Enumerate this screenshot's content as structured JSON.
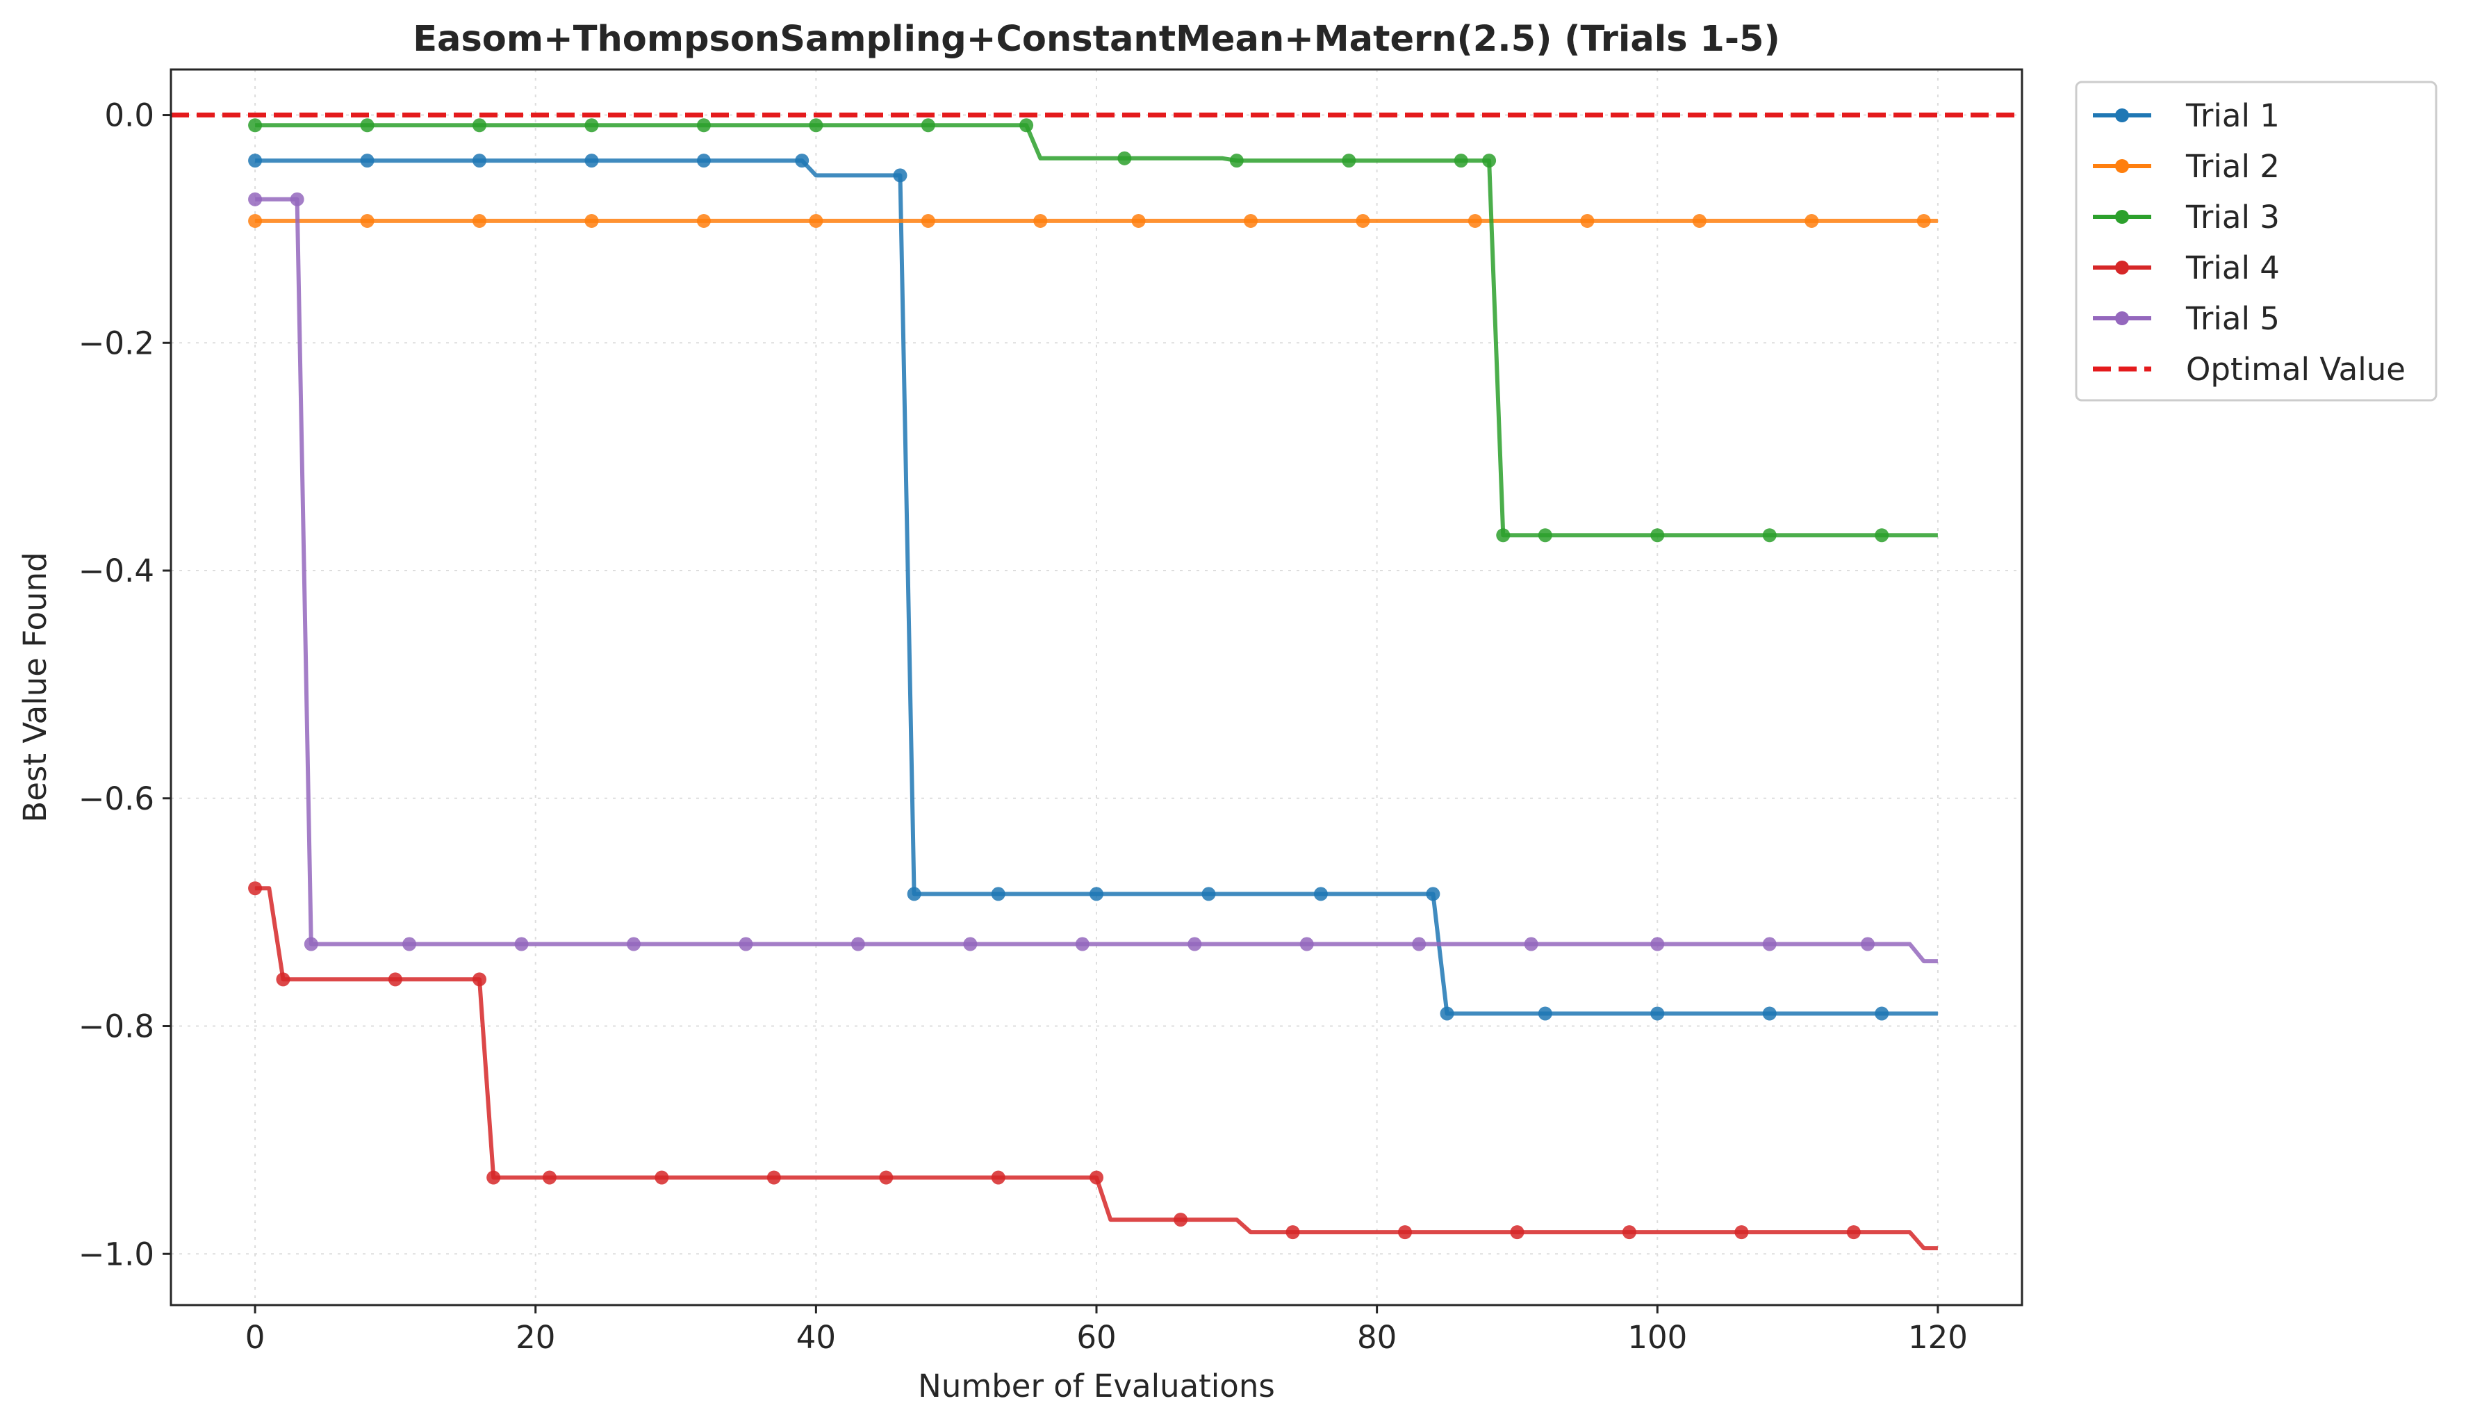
{
  "chart_data": {
    "type": "line",
    "title": "Easom+ThompsonSampling+ConstantMean+Matern(2.5) (Trials 1-5)",
    "xlabel": "Number of Evaluations",
    "ylabel": "Best Value Found",
    "xlim": [
      -6,
      126
    ],
    "ylim": [
      -1.045,
      0.04
    ],
    "xticks": [
      0,
      20,
      40,
      60,
      80,
      100,
      120
    ],
    "xtick_labels": [
      "0",
      "20",
      "40",
      "60",
      "80",
      "100",
      "120"
    ],
    "yticks": [
      0.0,
      -0.2,
      -0.4,
      -0.6,
      -0.8,
      -1.0
    ],
    "ytick_labels": [
      "0.0",
      "−0.2",
      "−0.4",
      "−0.6",
      "−0.8",
      "−1.0"
    ],
    "grid": true,
    "legend_position": "outside-top-right",
    "optimal_value": {
      "name": "Optimal Value",
      "y": 0.0,
      "color": "#e41a1c",
      "style": "dashed"
    },
    "series": [
      {
        "name": "Trial 1",
        "color": "#1f77b4",
        "steps": [
          [
            0,
            -0.04
          ],
          [
            39,
            -0.04
          ],
          [
            40,
            -0.053
          ],
          [
            46,
            -0.053
          ],
          [
            47,
            -0.684
          ],
          [
            84,
            -0.684
          ],
          [
            85,
            -0.789
          ],
          [
            120,
            -0.789
          ]
        ],
        "markers": [
          0,
          8,
          16,
          24,
          32,
          39,
          46,
          47,
          53,
          60,
          68,
          76,
          84,
          85,
          92,
          100,
          108,
          116
        ]
      },
      {
        "name": "Trial 2",
        "color": "#ff7f0e",
        "steps": [
          [
            0,
            -0.093
          ],
          [
            120,
            -0.093
          ]
        ],
        "markers": [
          0,
          8,
          16,
          24,
          32,
          40,
          48,
          56,
          63,
          71,
          79,
          87,
          95,
          103,
          111,
          119
        ]
      },
      {
        "name": "Trial 3",
        "color": "#2ca02c",
        "steps": [
          [
            0,
            -0.009
          ],
          [
            55,
            -0.009
          ],
          [
            56,
            -0.038
          ],
          [
            69,
            -0.038
          ],
          [
            70,
            -0.04
          ],
          [
            88,
            -0.04
          ],
          [
            89,
            -0.369
          ],
          [
            120,
            -0.369
          ]
        ],
        "markers": [
          0,
          8,
          16,
          24,
          32,
          40,
          48,
          55,
          62,
          70,
          78,
          86,
          88,
          89,
          92,
          100,
          108,
          116
        ]
      },
      {
        "name": "Trial 4",
        "color": "#d62728",
        "steps": [
          [
            0,
            -0.679
          ],
          [
            1,
            -0.679
          ],
          [
            2,
            -0.759
          ],
          [
            16,
            -0.759
          ],
          [
            17,
            -0.933
          ],
          [
            60,
            -0.933
          ],
          [
            61,
            -0.97
          ],
          [
            70,
            -0.97
          ],
          [
            71,
            -0.981
          ],
          [
            118,
            -0.981
          ],
          [
            119,
            -0.995
          ],
          [
            120,
            -0.995
          ]
        ],
        "markers": [
          0,
          2,
          10,
          16,
          17,
          21,
          29,
          37,
          45,
          53,
          60,
          66,
          74,
          82,
          90,
          98,
          106,
          114
        ]
      },
      {
        "name": "Trial 5",
        "color": "#9467bd",
        "steps": [
          [
            0,
            -0.074
          ],
          [
            3,
            -0.074
          ],
          [
            4,
            -0.728
          ],
          [
            118,
            -0.728
          ],
          [
            119,
            -0.743
          ],
          [
            120,
            -0.743
          ]
        ],
        "markers": [
          0,
          3,
          4,
          11,
          19,
          27,
          35,
          43,
          51,
          59,
          67,
          75,
          83,
          91,
          100,
          108,
          115
        ]
      }
    ]
  }
}
